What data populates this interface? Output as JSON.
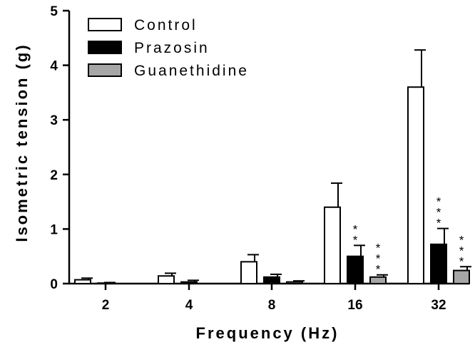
{
  "chart_data": {
    "type": "bar",
    "title": "",
    "xlabel": "Frequency (Hz)",
    "ylabel": "Isometric tension (g)",
    "ylim": [
      0,
      5
    ],
    "yticks": [
      "0",
      "1",
      "2",
      "3",
      "4",
      "5"
    ],
    "categories": [
      "2",
      "4",
      "8",
      "16",
      "32"
    ],
    "legend_position": "top-left",
    "series": [
      {
        "name": "Control",
        "color": "#ffffff",
        "values": [
          0.07,
          0.14,
          0.4,
          1.4,
          3.6
        ],
        "errors": [
          0.03,
          0.05,
          0.13,
          0.44,
          0.68
        ],
        "significance": [
          "",
          "",
          "",
          "",
          ""
        ]
      },
      {
        "name": "Prazosin",
        "color": "#000000",
        "values": [
          0.01,
          0.03,
          0.12,
          0.5,
          0.72
        ],
        "errors": [
          0.01,
          0.03,
          0.05,
          0.2,
          0.29
        ],
        "significance": [
          "",
          "",
          "",
          "**",
          "***"
        ]
      },
      {
        "name": "Guanethidine",
        "color": "#a6a6a6",
        "values": [
          0.0,
          0.0,
          0.03,
          0.12,
          0.24
        ],
        "errors": [
          0.0,
          0.0,
          0.02,
          0.04,
          0.07
        ],
        "significance": [
          "",
          "",
          "",
          "***",
          "***"
        ]
      }
    ],
    "grid": false
  }
}
